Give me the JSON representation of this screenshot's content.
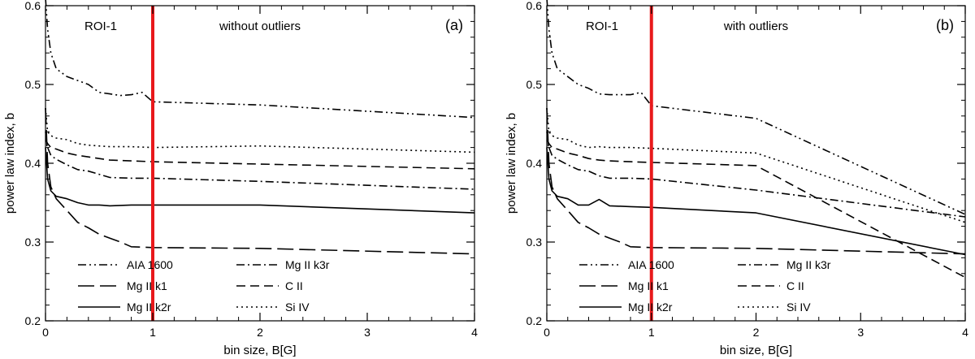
{
  "chart_data": [
    {
      "type": "line",
      "panel_label": "(a)",
      "region": "ROI-1",
      "title": "without outliers",
      "xlabel": "bin size, B[G]",
      "ylabel": "power law index, b",
      "xlim": [
        0,
        4
      ],
      "ylim": [
        0.2,
        0.6
      ],
      "xticks": [
        "0",
        "1",
        "2",
        "3",
        "4"
      ],
      "yticks": [
        "0.2",
        "0.3",
        "0.4",
        "0.5",
        "0.6"
      ],
      "vline": {
        "x": 1,
        "color": "#e8191b"
      },
      "series": [
        {
          "name": "AIA 1600",
          "dash": "dash-dot-dot",
          "x": [
            0,
            0.02,
            0.05,
            0.1,
            0.2,
            0.3,
            0.4,
            0.5,
            0.6,
            0.7,
            0.8,
            0.9,
            1.0,
            2.0,
            4.0
          ],
          "y": [
            0.61,
            0.57,
            0.54,
            0.52,
            0.51,
            0.505,
            0.5,
            0.49,
            0.488,
            0.486,
            0.487,
            0.49,
            0.478,
            0.474,
            0.458
          ]
        },
        {
          "name": "Mg II k1",
          "dash": "long-dash",
          "x": [
            0,
            0.02,
            0.05,
            0.1,
            0.2,
            0.3,
            0.4,
            0.5,
            0.6,
            0.7,
            0.8,
            1.0,
            2.0,
            4.0
          ],
          "y": [
            0.47,
            0.4,
            0.37,
            0.355,
            0.34,
            0.325,
            0.318,
            0.31,
            0.305,
            0.3,
            0.294,
            0.293,
            0.292,
            0.285
          ]
        },
        {
          "name": "Mg II k2r",
          "dash": "solid",
          "x": [
            0,
            0.02,
            0.05,
            0.1,
            0.2,
            0.3,
            0.4,
            0.5,
            0.6,
            0.8,
            1.0,
            2.0,
            4.0
          ],
          "y": [
            0.42,
            0.38,
            0.365,
            0.358,
            0.355,
            0.35,
            0.347,
            0.347,
            0.346,
            0.347,
            0.347,
            0.347,
            0.337
          ]
        },
        {
          "name": "Mg II k3r",
          "dash": "dash-dot",
          "x": [
            0,
            0.02,
            0.05,
            0.1,
            0.2,
            0.3,
            0.4,
            0.5,
            0.6,
            0.8,
            1.0,
            2.0,
            4.0
          ],
          "y": [
            0.44,
            0.42,
            0.41,
            0.405,
            0.398,
            0.392,
            0.39,
            0.386,
            0.382,
            0.381,
            0.381,
            0.377,
            0.367
          ]
        },
        {
          "name": "C II",
          "dash": "dash",
          "x": [
            0,
            0.02,
            0.05,
            0.1,
            0.2,
            0.3,
            0.4,
            0.5,
            0.6,
            0.8,
            1.0,
            2.0,
            4.0
          ],
          "y": [
            0.43,
            0.425,
            0.42,
            0.418,
            0.413,
            0.41,
            0.408,
            0.406,
            0.404,
            0.403,
            0.402,
            0.399,
            0.393
          ]
        },
        {
          "name": "Si IV",
          "dash": "dot",
          "x": [
            0,
            0.02,
            0.05,
            0.1,
            0.2,
            0.3,
            0.4,
            0.5,
            0.6,
            0.8,
            1.0,
            2.0,
            4.0
          ],
          "y": [
            0.47,
            0.44,
            0.435,
            0.432,
            0.43,
            0.425,
            0.423,
            0.422,
            0.421,
            0.421,
            0.42,
            0.422,
            0.414
          ]
        }
      ]
    },
    {
      "type": "line",
      "panel_label": "(b)",
      "region": "ROI-1",
      "title": "with outliers",
      "xlabel": "bin size, B[G]",
      "ylabel": "power law index, b",
      "xlim": [
        0,
        4
      ],
      "ylim": [
        0.2,
        0.6
      ],
      "xticks": [
        "0",
        "1",
        "2",
        "3",
        "4"
      ],
      "yticks": [
        "0.2",
        "0.3",
        "0.4",
        "0.5",
        "0.6"
      ],
      "vline": {
        "x": 1,
        "color": "#e8191b"
      },
      "series": [
        {
          "name": "AIA 1600",
          "dash": "dash-dot-dot",
          "x": [
            0,
            0.02,
            0.05,
            0.1,
            0.2,
            0.3,
            0.4,
            0.5,
            0.6,
            0.7,
            0.8,
            0.9,
            1.0,
            2.0,
            4.0
          ],
          "y": [
            0.61,
            0.57,
            0.54,
            0.52,
            0.51,
            0.5,
            0.495,
            0.488,
            0.487,
            0.487,
            0.487,
            0.49,
            0.473,
            0.457,
            0.335
          ]
        },
        {
          "name": "Mg II k1",
          "dash": "long-dash",
          "x": [
            0,
            0.02,
            0.05,
            0.1,
            0.2,
            0.3,
            0.4,
            0.5,
            0.6,
            0.7,
            0.8,
            1.0,
            2.0,
            4.0
          ],
          "y": [
            0.47,
            0.4,
            0.37,
            0.355,
            0.34,
            0.325,
            0.318,
            0.31,
            0.305,
            0.3,
            0.294,
            0.293,
            0.292,
            0.285
          ]
        },
        {
          "name": "Mg II k2r",
          "dash": "solid",
          "x": [
            0,
            0.02,
            0.05,
            0.1,
            0.2,
            0.3,
            0.4,
            0.5,
            0.6,
            0.8,
            1.0,
            2.0,
            4.0
          ],
          "y": [
            0.42,
            0.38,
            0.365,
            0.358,
            0.355,
            0.347,
            0.347,
            0.354,
            0.346,
            0.345,
            0.344,
            0.337,
            0.284
          ]
        },
        {
          "name": "Mg II k3r",
          "dash": "dash-dot",
          "x": [
            0,
            0.02,
            0.05,
            0.1,
            0.2,
            0.3,
            0.4,
            0.5,
            0.6,
            0.8,
            1.0,
            2.0,
            4.0
          ],
          "y": [
            0.44,
            0.42,
            0.41,
            0.405,
            0.398,
            0.392,
            0.39,
            0.384,
            0.381,
            0.381,
            0.38,
            0.366,
            0.332
          ]
        },
        {
          "name": "C II",
          "dash": "dash",
          "x": [
            0,
            0.02,
            0.05,
            0.1,
            0.2,
            0.3,
            0.4,
            0.5,
            0.6,
            0.8,
            1.0,
            2.0,
            4.0
          ],
          "y": [
            0.43,
            0.425,
            0.42,
            0.418,
            0.413,
            0.41,
            0.406,
            0.404,
            0.403,
            0.402,
            0.401,
            0.397,
            0.255
          ]
        },
        {
          "name": "Si IV",
          "dash": "dot",
          "x": [
            0,
            0.02,
            0.05,
            0.1,
            0.2,
            0.3,
            0.4,
            0.5,
            0.6,
            0.8,
            1.0,
            2.0,
            4.0
          ],
          "y": [
            0.47,
            0.44,
            0.435,
            0.432,
            0.43,
            0.423,
            0.42,
            0.421,
            0.42,
            0.42,
            0.419,
            0.413,
            0.325
          ]
        }
      ]
    }
  ]
}
